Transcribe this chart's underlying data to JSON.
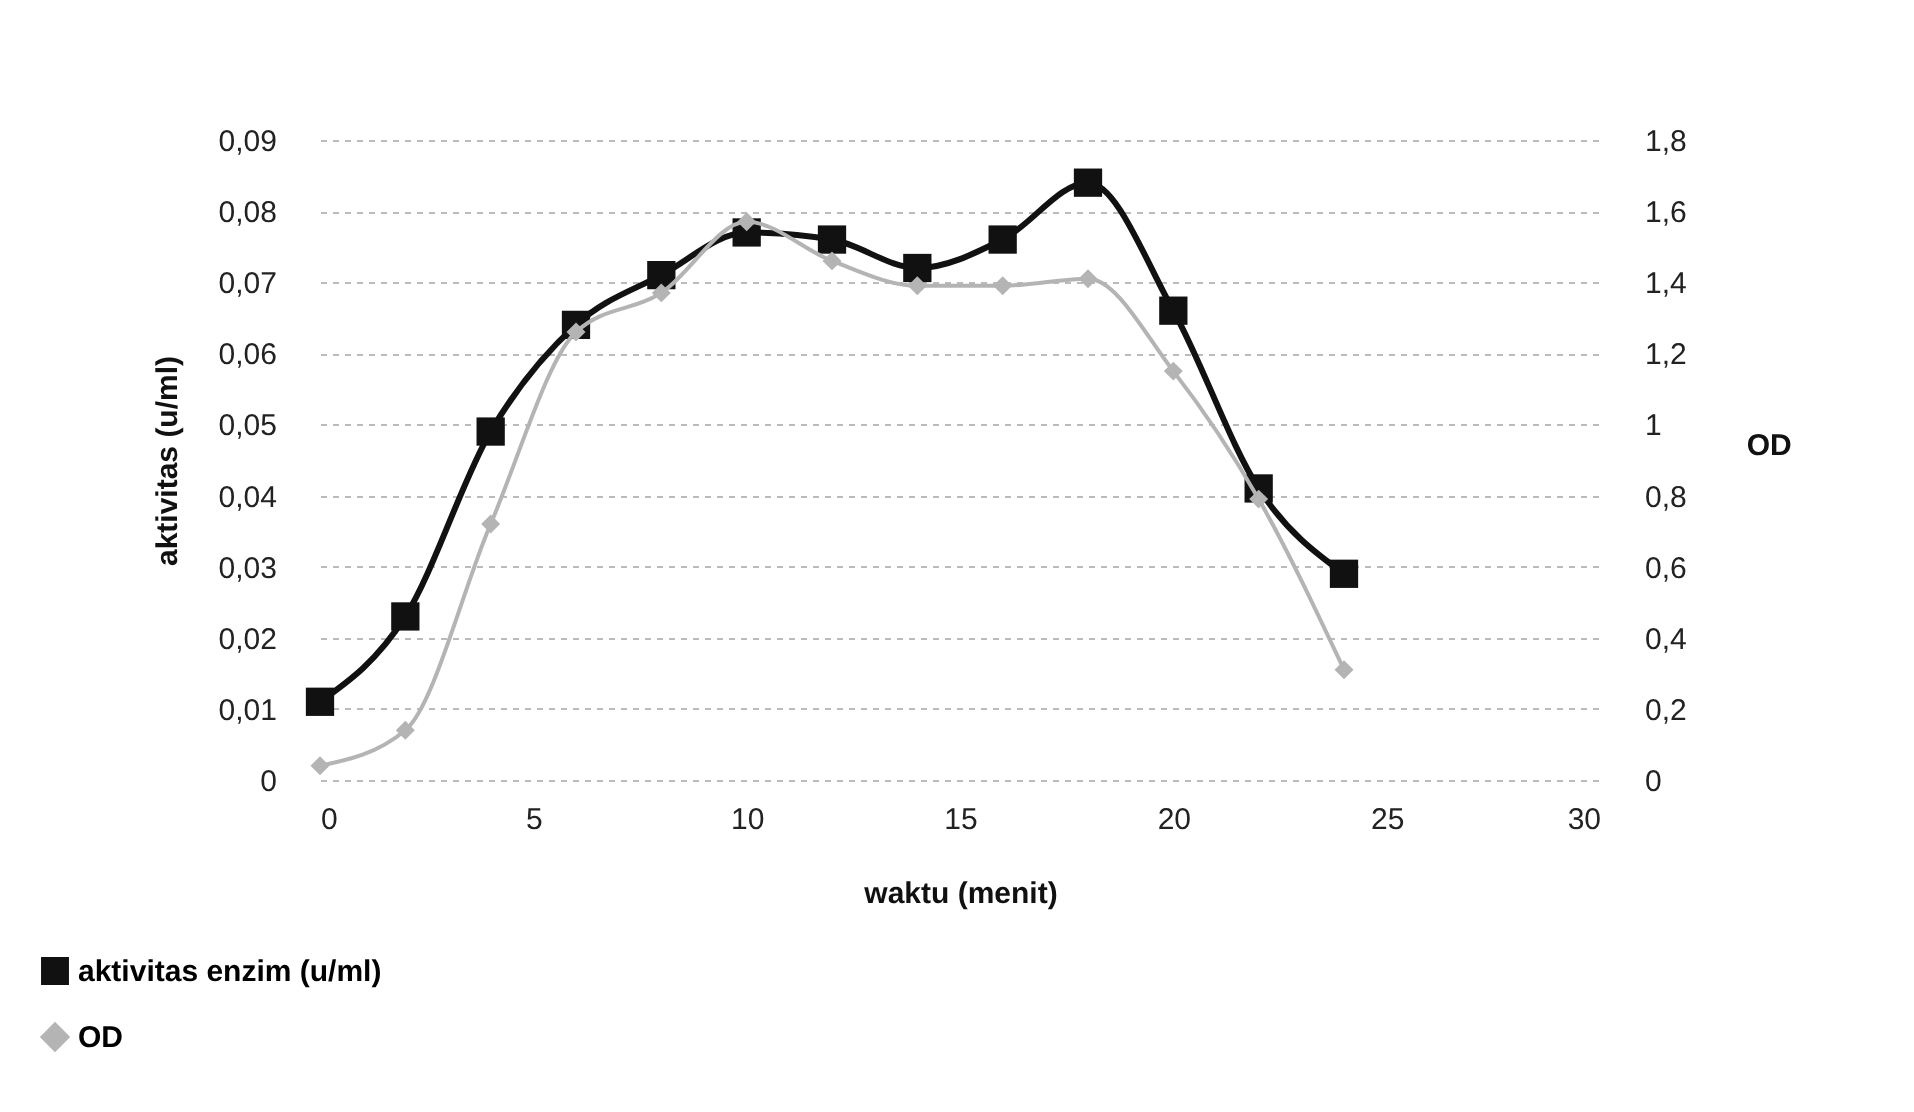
{
  "chart_data": {
    "type": "line",
    "xlabel": "waktu (menit)",
    "ylabel": "aktivitas (u/ml)",
    "y2label": "OD",
    "x": [
      0,
      2,
      4,
      6,
      8,
      10,
      12,
      14,
      16,
      18,
      20,
      22,
      24
    ],
    "series": [
      {
        "name": "aktivitas enzim (u/ml)",
        "color": "#111111",
        "marker": "square",
        "values": [
          0.011,
          0.023,
          0.049,
          0.064,
          0.071,
          0.077,
          0.076,
          0.072,
          0.076,
          0.084,
          0.066,
          0.041,
          0.029
        ]
      },
      {
        "name": "OD",
        "color": "#b4b4b4",
        "marker": "diamond",
        "axis": "y2",
        "values": [
          0.04,
          0.14,
          0.72,
          1.26,
          1.37,
          1.57,
          1.46,
          1.39,
          1.39,
          1.41,
          1.15,
          0.79,
          0.31
        ]
      }
    ],
    "xlim": [
      0,
      30
    ],
    "xticks": [
      0,
      5,
      10,
      15,
      20,
      25,
      30
    ],
    "ylim": [
      0,
      0.09
    ],
    "yticks": [
      0,
      {
        "value": 0.01,
        "label": "0,01"
      },
      {
        "value": 0.02,
        "label": "0,02"
      },
      {
        "value": 0.03,
        "label": "0,03"
      },
      {
        "value": 0.04,
        "label": "0,04"
      },
      {
        "value": 0.05,
        "label": "0,05"
      },
      {
        "value": 0.06,
        "label": "0,06"
      },
      {
        "value": 0.07,
        "label": "0,07"
      },
      {
        "value": 0.08,
        "label": "0,08"
      },
      {
        "value": 0.09,
        "label": "0,09"
      }
    ],
    "y2lim": [
      0,
      1.8
    ],
    "y2ticks": [
      0,
      {
        "value": 0.2,
        "label": "0,2"
      },
      {
        "value": 0.4,
        "label": "0,4"
      },
      {
        "value": 0.6,
        "label": "0,6"
      },
      {
        "value": 0.8,
        "label": "0,8"
      },
      1,
      {
        "value": 1.2,
        "label": "1,2"
      },
      {
        "value": 1.4,
        "label": "1,4"
      },
      {
        "value": 1.6,
        "label": "1,6"
      },
      {
        "value": 1.8,
        "label": "1,8"
      }
    ],
    "grid": "y",
    "legend": "bottom left",
    "line_style": "solid"
  }
}
